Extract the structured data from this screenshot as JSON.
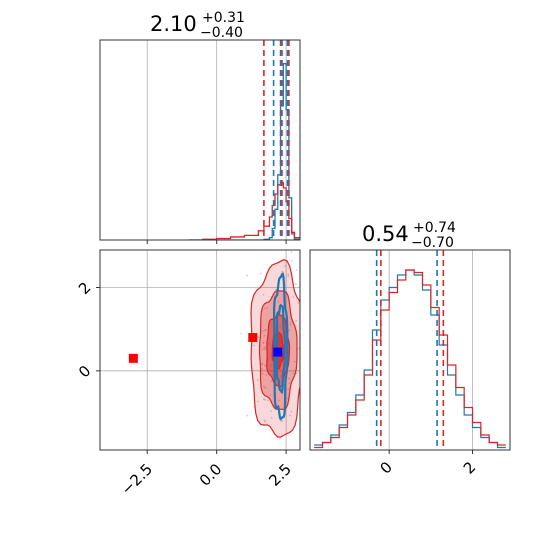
{
  "chart_data": [
    {
      "type": "histogram",
      "panel": "param-1-marginal",
      "title": {
        "value": "2.10",
        "upper": "+0.31",
        "lower": "−0.40"
      },
      "colors": {
        "blue": "#1f77b4",
        "red": "#d62728"
      },
      "xlim": [
        -4.2,
        3.0
      ],
      "grid": true,
      "bins": [
        -1.0,
        -0.5,
        0.0,
        0.5,
        1.0,
        1.5,
        1.7,
        1.9,
        2.0,
        2.1,
        2.2,
        2.3,
        2.4,
        2.5,
        2.6,
        2.7,
        2.8,
        3.0
      ],
      "series": [
        {
          "color": "blue",
          "values": [
            0,
            0,
            0,
            0,
            0,
            0,
            1,
            3,
            15,
            40,
            85,
            175,
            230,
            170,
            55,
            8,
            1
          ]
        },
        {
          "color": "red",
          "values": [
            0,
            1,
            2,
            4,
            6,
            12,
            18,
            30,
            45,
            60,
            72,
            75,
            68,
            50,
            28,
            10,
            3
          ]
        }
      ],
      "quantile_lines": [
        {
          "color": "red",
          "x": [
            1.7,
            2.35,
            2.6
          ]
        },
        {
          "color": "blue",
          "x": [
            2.05,
            2.3,
            2.55
          ]
        }
      ]
    },
    {
      "type": "contour",
      "panel": "joint",
      "xlim": [
        -4.2,
        3.0
      ],
      "ylim": [
        -1.9,
        2.9
      ],
      "xticks": [
        -2.5,
        0.0,
        2.5
      ],
      "xtick_labels": [
        "−2.5",
        "0.0",
        "2.5"
      ],
      "yticks": [
        0,
        2
      ],
      "ytick_labels": [
        "0",
        "2"
      ],
      "grid": true,
      "markers": [
        {
          "color": "red",
          "x": -3.0,
          "y": 0.3
        },
        {
          "color": "red",
          "x": 1.3,
          "y": 0.8
        },
        {
          "color": "blue",
          "x": 2.2,
          "y": 0.45
        }
      ],
      "contours": {
        "red": {
          "center": [
            2.2,
            0.5
          ],
          "sigma": [
            0.45,
            0.95
          ]
        },
        "blue": {
          "center": [
            2.3,
            0.55
          ],
          "sigma": [
            0.12,
            0.85
          ]
        }
      }
    },
    {
      "type": "histogram",
      "panel": "param-2-marginal",
      "title": {
        "value": "0.54",
        "upper": "+0.74",
        "lower": "−0.70"
      },
      "xlim": [
        -1.9,
        2.9
      ],
      "xticks": [
        0,
        2
      ],
      "xtick_labels": [
        "0",
        "2"
      ],
      "grid": true,
      "x_centers": [
        -1.7,
        -1.5,
        -1.3,
        -1.1,
        -0.9,
        -0.7,
        -0.5,
        -0.3,
        -0.1,
        0.1,
        0.3,
        0.5,
        0.7,
        0.9,
        1.1,
        1.3,
        1.5,
        1.7,
        1.9,
        2.1,
        2.3,
        2.5,
        2.7
      ],
      "series": [
        {
          "color": "blue",
          "values": [
            2,
            3,
            6,
            10,
            15,
            22,
            32,
            48,
            60,
            65,
            70,
            72,
            70,
            64,
            54,
            42,
            30,
            22,
            14,
            9,
            5,
            3,
            1
          ]
        },
        {
          "color": "red",
          "values": [
            1,
            3,
            5,
            9,
            14,
            20,
            30,
            44,
            56,
            63,
            68,
            72,
            71,
            66,
            57,
            46,
            34,
            25,
            17,
            11,
            6,
            3,
            2
          ]
        }
      ],
      "quantile_lines": [
        {
          "color": "blue",
          "x": [
            -0.3,
            1.15
          ]
        },
        {
          "color": "red",
          "x": [
            -0.2,
            1.3
          ]
        }
      ]
    }
  ]
}
